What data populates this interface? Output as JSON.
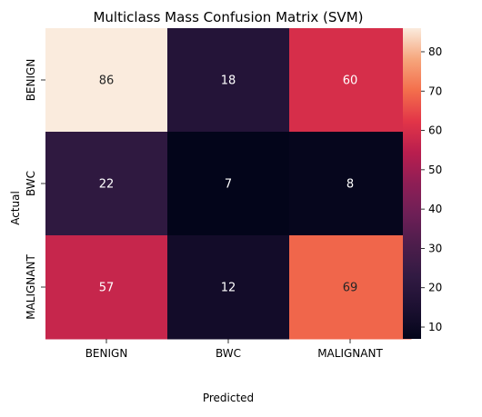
{
  "chart_data": {
    "type": "heatmap",
    "title": "Multiclass Mass Confusion Matrix (SVM)",
    "xlabel": "Predicted",
    "ylabel": "Actual",
    "x_categories": [
      "BENIGN",
      "BWC",
      "MALIGNANT"
    ],
    "y_categories": [
      "BENIGN",
      "BWC",
      "MALIGNANT"
    ],
    "values": [
      [
        86,
        18,
        60
      ],
      [
        22,
        7,
        8
      ],
      [
        57,
        12,
        69
      ]
    ],
    "colorbar": {
      "range": [
        7,
        86
      ],
      "ticks": [
        10,
        20,
        30,
        40,
        50,
        60,
        70,
        80
      ],
      "colormap": "rocket"
    }
  }
}
